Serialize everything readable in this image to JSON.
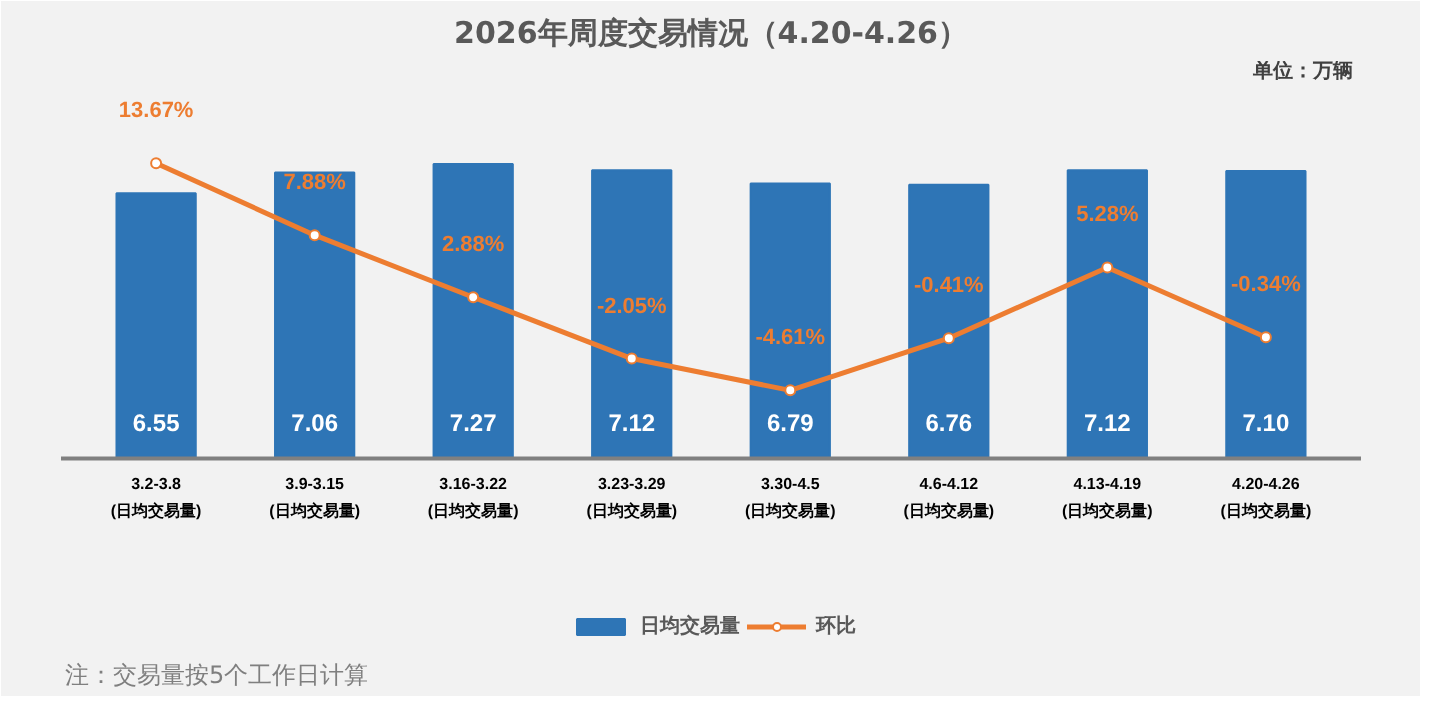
{
  "chart_data": {
    "type": "bar",
    "title": "2026年周度交易情况（4.20-4.26）",
    "categories": [
      "3.2-3.8\n(日均交易量)",
      "3.9-3.15\n(日均交易量)",
      "3.16-3.22\n(日均交易量)",
      "3.23-3.29\n(日均交易量)",
      "3.30-4.5\n(日均交易量)",
      "4.6-4.12\n(日均交易量)",
      "4.13-4.19\n(日均交易量)",
      "4.20-4.26\n(日均交易量)"
    ],
    "series": [
      {
        "name": "日均交易量",
        "color": "#2e75b6",
        "values": [
          6.55,
          7.06,
          7.27,
          7.12,
          6.79,
          6.76,
          7.12,
          7.1
        ],
        "value_labels": [
          "6.55",
          "7.06",
          "7.27",
          "7.12",
          "6.79",
          "6.76",
          "7.12",
          "7.10"
        ]
      },
      {
        "name": "环比",
        "type": "line",
        "axis": "y2",
        "color": "#ed7d31",
        "values": [
          13.67,
          7.88,
          2.88,
          -2.05,
          -4.61,
          -0.41,
          5.28,
          -0.34
        ],
        "value_labels": [
          "13.67%",
          "7.88%",
          "2.88%",
          "-2.05%",
          "-4.61%",
          "-0.41%",
          "5.28%",
          "-0.34%"
        ],
        "marker": "circle"
      }
    ],
    "tick_labels": "x",
    "legend": "bottom",
    "annotations": [
      "单位：万辆",
      "注：交易量按5个工作日计算"
    ]
  }
}
